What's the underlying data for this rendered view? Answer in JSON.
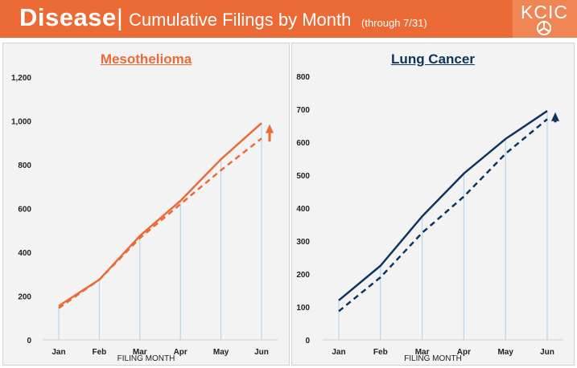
{
  "header": {
    "title_main": "Disease",
    "divider": "|",
    "title_sub": "Cumulative Filings by Month",
    "title_note": "(through 7/31)",
    "logo_text": "KCIC",
    "bg_color": "#ec6a35"
  },
  "chart_data": [
    {
      "type": "line",
      "title": "Mesothelioma",
      "xlabel": "FILING MONTH",
      "ylabel": "",
      "categories": [
        "Jan",
        "Feb",
        "Mar",
        "Apr",
        "May",
        "Jun"
      ],
      "yticks": [
        "0",
        "200",
        "400",
        "600",
        "800",
        "1,000",
        "1,200"
      ],
      "ylim": [
        0,
        1200
      ],
      "color": "#ec6a35",
      "series": [
        {
          "style": "solid",
          "values": [
            155,
            275,
            475,
            635,
            825,
            990
          ]
        },
        {
          "style": "dashed",
          "values": [
            145,
            275,
            465,
            620,
            775,
            920
          ]
        }
      ],
      "trend_arrow": "up",
      "grid": "vertical",
      "legend": "none"
    },
    {
      "type": "line",
      "title": "Lung Cancer",
      "xlabel": "FILING MONTH",
      "ylabel": "",
      "categories": [
        "Jan",
        "Feb",
        "Mar",
        "Apr",
        "May",
        "Jun"
      ],
      "yticks": [
        "0",
        "100",
        "200",
        "300",
        "400",
        "500",
        "600",
        "700",
        "800"
      ],
      "ylim": [
        0,
        800
      ],
      "color": "#0d3461",
      "series": [
        {
          "style": "solid",
          "values": [
            120,
            225,
            375,
            505,
            610,
            695
          ]
        },
        {
          "style": "dashed",
          "values": [
            87,
            190,
            325,
            435,
            565,
            670
          ]
        }
      ],
      "trend_arrow": "up",
      "grid": "vertical",
      "legend": "none"
    }
  ]
}
